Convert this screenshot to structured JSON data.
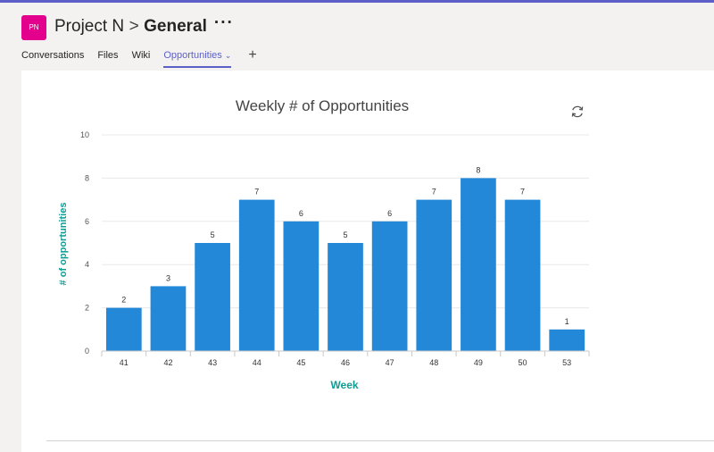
{
  "header": {
    "team_avatar": "PN",
    "team_name": "Project N",
    "separator": ">",
    "channel_name": "General",
    "more": "···"
  },
  "tabs": [
    {
      "label": "Conversations"
    },
    {
      "label": "Files"
    },
    {
      "label": "Wiki"
    },
    {
      "label": "Opportunities",
      "active": true
    }
  ],
  "add_tab": "+",
  "icons": {
    "refresh": "refresh-icon",
    "tab_dropdown": "chevron-down-icon",
    "add_tab": "plus-icon"
  },
  "colors": {
    "accent": "#5b5fc7",
    "bar": "#2488d8",
    "axis_title": "#109c93",
    "avatar": "#e3008c"
  },
  "chart_data": {
    "type": "bar",
    "title": "Weekly # of Opportunities",
    "xlabel": "Week",
    "ylabel": "# of opportunities",
    "categories": [
      "41",
      "42",
      "43",
      "44",
      "45",
      "46",
      "47",
      "48",
      "49",
      "50",
      "53"
    ],
    "values": [
      2,
      3,
      5,
      7,
      6,
      5,
      6,
      7,
      8,
      7,
      1
    ],
    "ylim": [
      0,
      10
    ],
    "yticks": [
      0,
      2,
      4,
      6,
      8,
      10
    ],
    "grid": true,
    "data_labels": true
  }
}
